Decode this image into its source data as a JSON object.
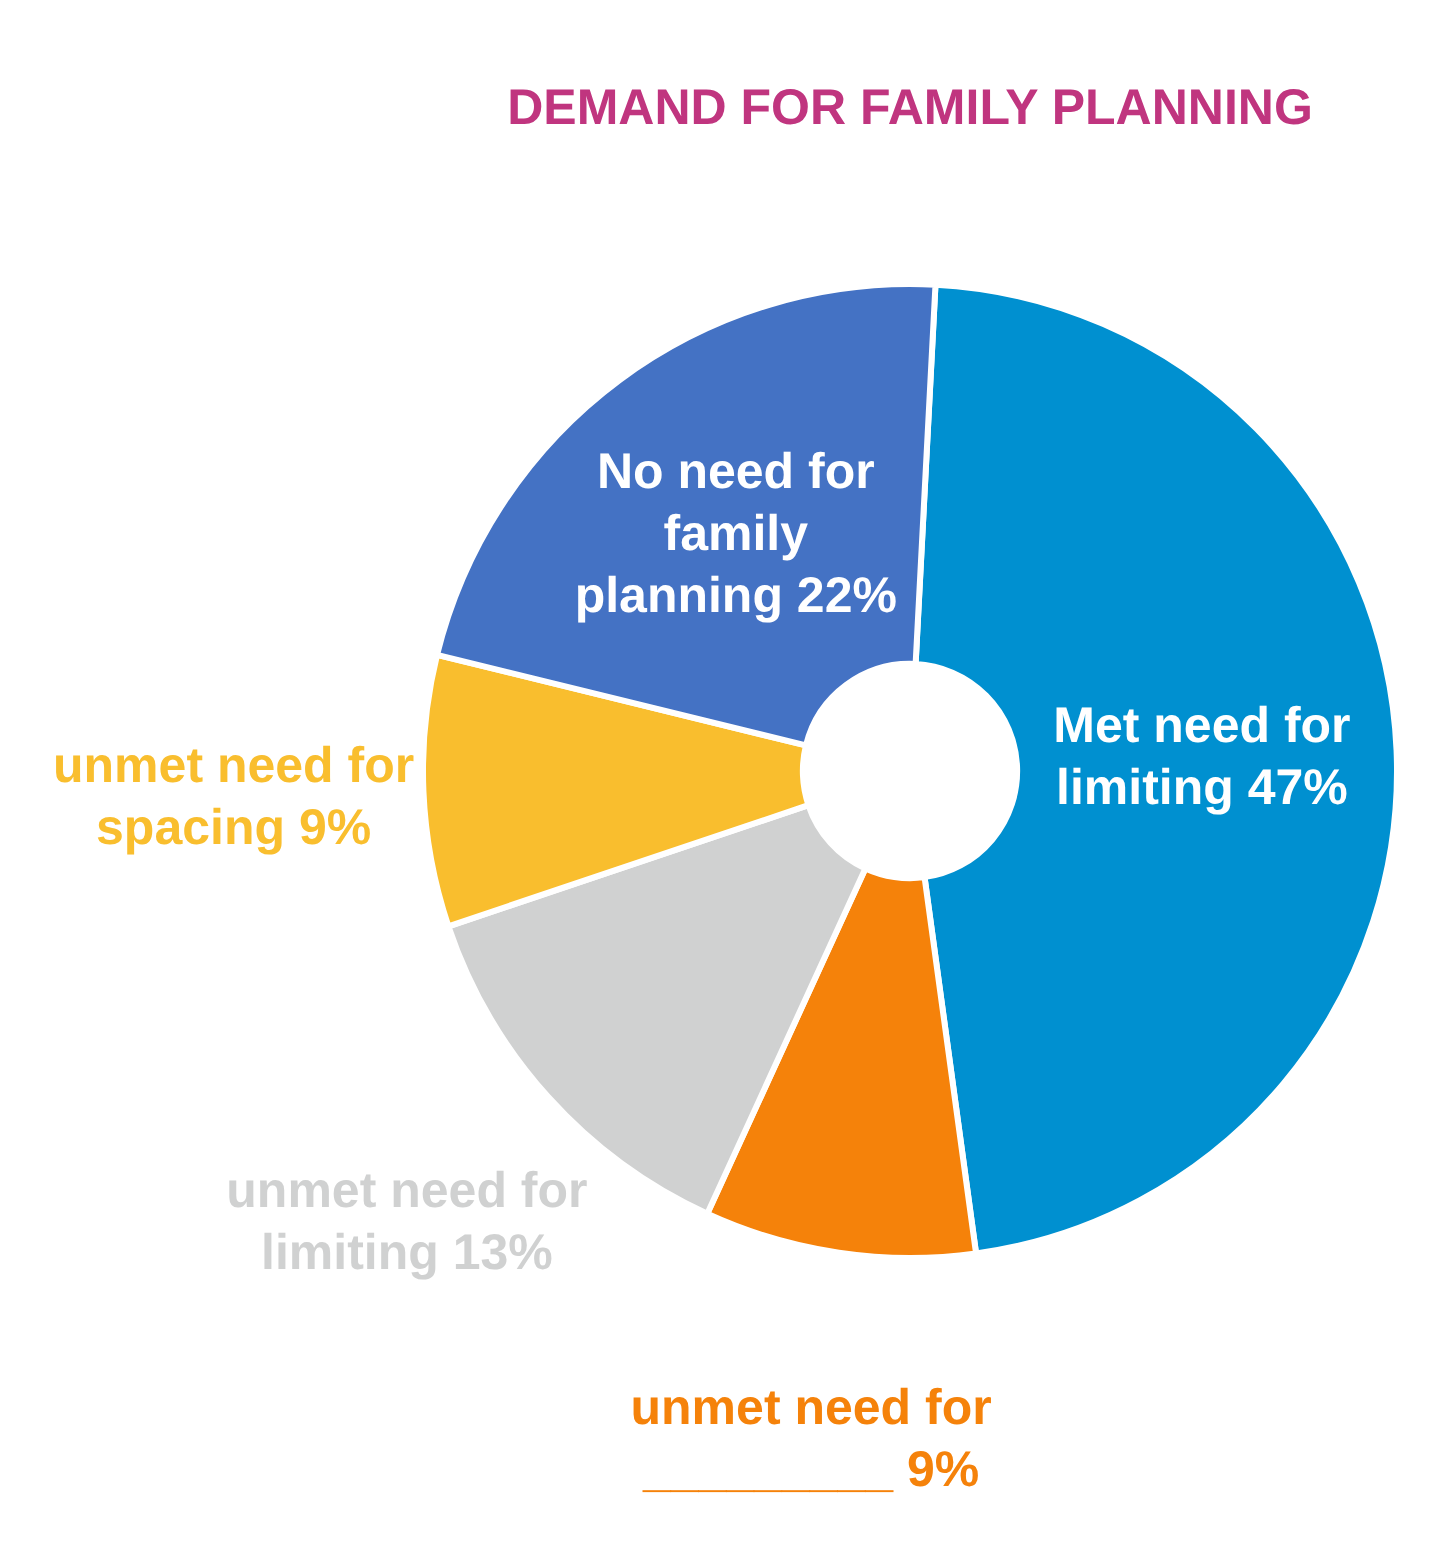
{
  "chart_data": {
    "type": "donut",
    "title": "DEMAND FOR FAMILY PLANNING",
    "categories": [
      "Met need for limiting",
      "unmet need for _________",
      "unmet need for limiting",
      "unmet need for spacing",
      "No need for family planning"
    ],
    "values": [
      47,
      9,
      13,
      9,
      22
    ],
    "colors": [
      "#0090d0",
      "#f5820a",
      "#d0d1d1",
      "#f9be2e",
      "#4472c4"
    ],
    "value_labels": [
      "47%",
      "9%",
      "13%",
      "9%",
      "22%"
    ],
    "legend": false
  }
}
